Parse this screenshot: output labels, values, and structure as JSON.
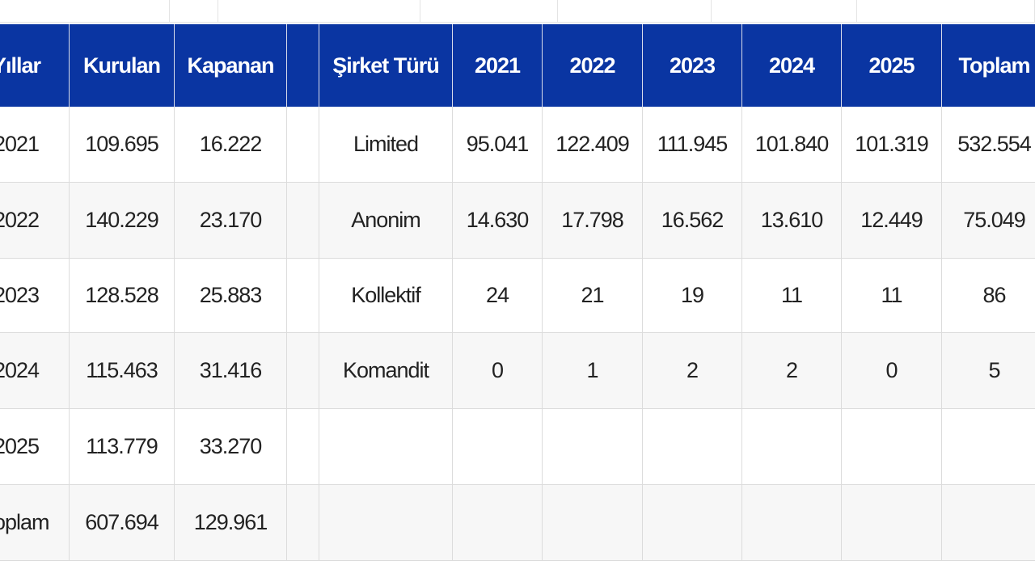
{
  "left_table": {
    "headers": [
      "Yıllar",
      "Kurulan",
      "Kapanan"
    ],
    "rows": [
      [
        "2021",
        "109.695",
        "16.222"
      ],
      [
        "2022",
        "140.229",
        "23.170"
      ],
      [
        "2023",
        "128.528",
        "25.883"
      ],
      [
        "2024",
        "115.463",
        "31.416"
      ],
      [
        "2025",
        "113.779",
        "33.270"
      ],
      [
        "Toplam",
        "607.694",
        "129.961"
      ]
    ]
  },
  "right_table": {
    "headers": [
      "Şirket Türü",
      "2021",
      "2022",
      "2023",
      "2024",
      "2025",
      "Toplam"
    ],
    "rows": [
      [
        "Limited",
        "95.041",
        "122.409",
        "111.945",
        "101.840",
        "101.319",
        "532.554"
      ],
      [
        "Anonim",
        "14.630",
        "17.798",
        "16.562",
        "13.610",
        "12.449",
        "75.049"
      ],
      [
        "Kollektif",
        "24",
        "21",
        "19",
        "11",
        "11",
        "86"
      ],
      [
        "Komandit",
        "0",
        "1",
        "2",
        "2",
        "0",
        "5"
      ]
    ]
  }
}
